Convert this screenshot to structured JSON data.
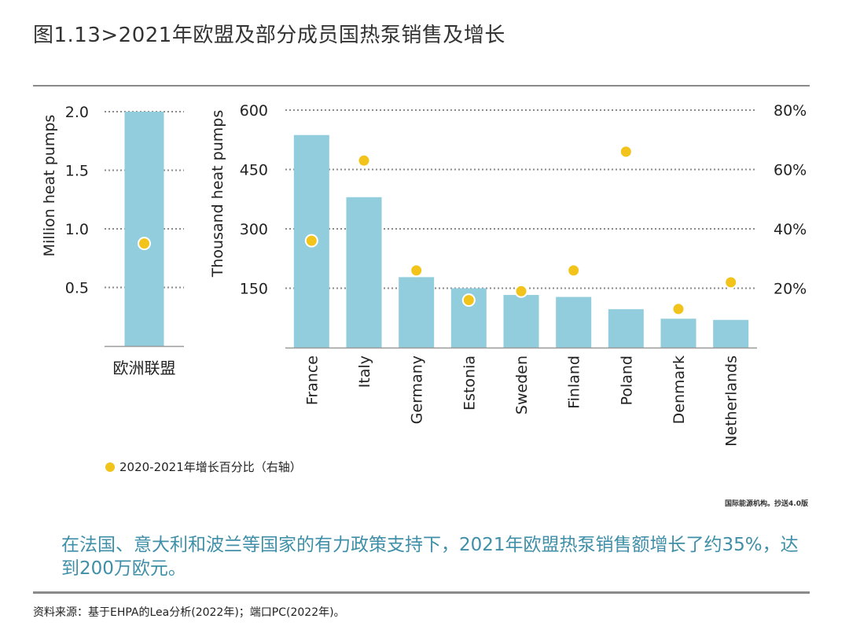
{
  "title": "图1.13>2021年欧盟及部分成员国热泵销售及增长",
  "legend": {
    "label": "2020-2021年增长百分比（右轴）",
    "color": "#f2c31a"
  },
  "credit": "国际能源机构。抄送4.0版",
  "highlight": "在法国、意大利和波兰等国家的有力政策支持下，2021年欧盟热泵销售额增长了约35%，达到200万欧元。",
  "source": "资料来源：基于EHPA的Lea分析(2022年)；端口PC(2022年)。",
  "colors": {
    "bar": "#92cddd",
    "dot": "#f2c31a",
    "grid": "#8a8a8a",
    "axis": "#9a9a9a"
  },
  "chart_data": [
    {
      "type": "bar",
      "categories": [
        "欧洲联盟"
      ],
      "series": [
        {
          "values": [
            2.0
          ],
          "axis": "left"
        },
        {
          "values": [
            35
          ],
          "axis": "right",
          "type": "scatter"
        }
      ],
      "ylabel": "Million heat pumps",
      "yticks": [
        "2.0",
        "1.5",
        "1.0",
        "0.5"
      ],
      "ylim": [
        0,
        2.0
      ],
      "y2lim": [
        0,
        80
      ],
      "grid": true
    },
    {
      "type": "bar",
      "categories": [
        "France",
        "Italy",
        "Germany",
        "Estonia",
        "Sweden",
        "Finland",
        "Poland",
        "Denmark",
        "Netherlands"
      ],
      "series": [
        {
          "values": [
            537,
            380,
            178,
            150,
            133,
            128,
            97,
            73,
            70
          ],
          "axis": "left"
        },
        {
          "values": [
            36,
            63,
            26,
            16,
            19,
            26,
            66,
            13,
            22
          ],
          "axis": "right",
          "type": "scatter"
        }
      ],
      "ylabel": "Thousand heat pumps",
      "yticks": [
        "600",
        "450",
        "300",
        "150"
      ],
      "y2ticks": [
        "80%",
        "60%",
        "40%",
        "20%"
      ],
      "ylim": [
        0,
        600
      ],
      "y2lim": [
        0,
        80
      ],
      "grid": true
    }
  ]
}
